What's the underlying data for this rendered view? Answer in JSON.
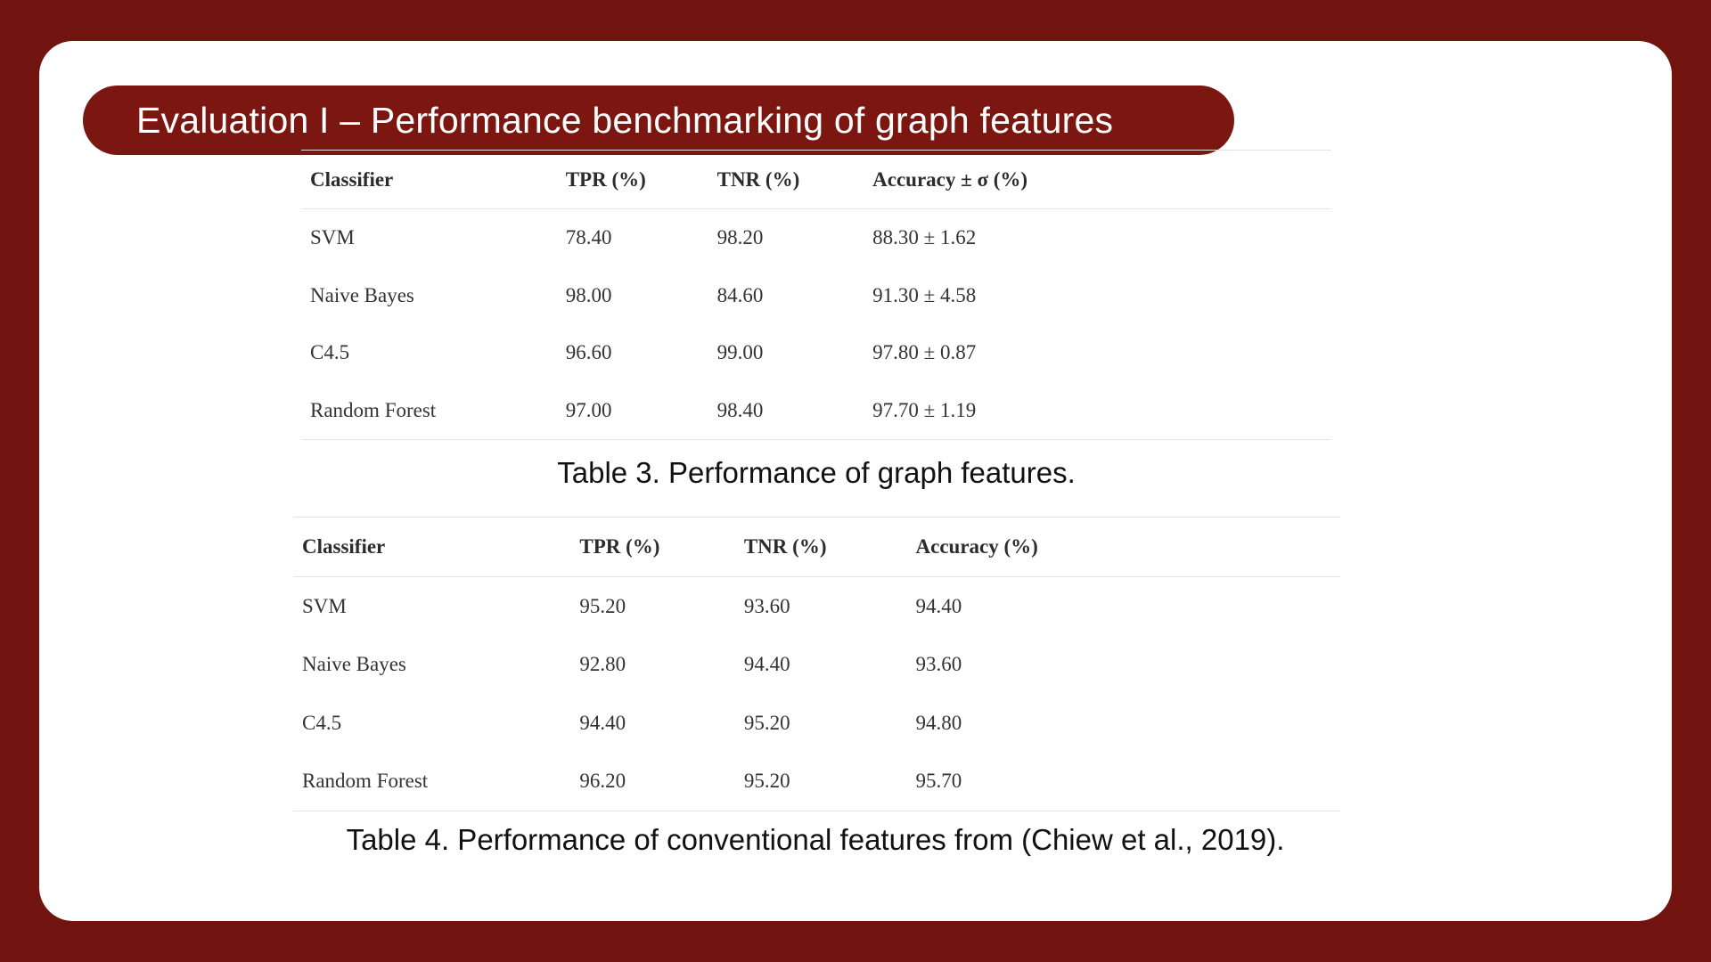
{
  "slide": {
    "title": "Evaluation I – Performance benchmarking of graph features"
  },
  "table3": {
    "headers": [
      "Classifier",
      "TPR (%)",
      "TNR (%)",
      "Accuracy ± σ (%)"
    ],
    "rows": [
      [
        "SVM",
        "78.40",
        "98.20",
        "88.30 ± 1.62"
      ],
      [
        "Naive Bayes",
        "98.00",
        "84.60",
        "91.30 ± 4.58"
      ],
      [
        "C4.5",
        "96.60",
        "99.00",
        "97.80 ± 0.87"
      ],
      [
        "Random Forest",
        "97.00",
        "98.40",
        "97.70 ± 1.19"
      ]
    ],
    "caption": "Table 3. Performance of graph features."
  },
  "table4": {
    "headers": [
      "Classifier",
      "TPR (%)",
      "TNR (%)",
      "Accuracy (%)"
    ],
    "rows": [
      [
        "SVM",
        "95.20",
        "93.60",
        "94.40"
      ],
      [
        "Naive Bayes",
        "92.80",
        "94.40",
        "93.60"
      ],
      [
        "C4.5",
        "94.40",
        "95.20",
        "94.80"
      ],
      [
        "Random Forest",
        "96.20",
        "95.20",
        "95.70"
      ]
    ],
    "caption": "Table 4. Performance of conventional features from (Chiew et al., 2019)."
  },
  "colors": {
    "background": "#72140f",
    "title_pill": "#7c1611",
    "slide": "#ffffff"
  }
}
